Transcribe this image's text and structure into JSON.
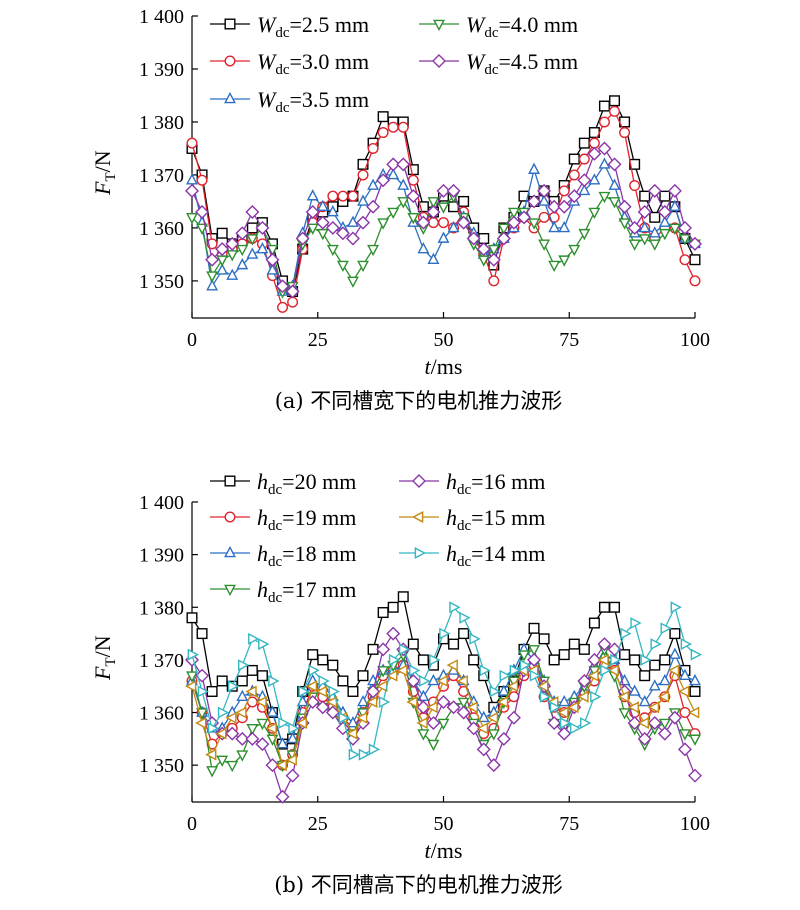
{
  "chart_data": [
    {
      "type": "line",
      "panel": "a",
      "caption": "(a) 不同槽宽下的电机推力波形",
      "xlabel": "t/ms",
      "ylabel": "F_T/N",
      "xlim": [
        0,
        100
      ],
      "ylim": [
        1343,
        1400
      ],
      "xticks": [
        0,
        25,
        50,
        75,
        100
      ],
      "xtick_labels": [
        "0",
        "25",
        "50",
        "75",
        "100"
      ],
      "yticks": [
        1350,
        1360,
        1370,
        1380,
        1390,
        1400
      ],
      "ytick_labels": [
        "1 350",
        "1 360",
        "1 370",
        "1 380",
        "1 390",
        "1 400"
      ],
      "grid": false,
      "legend_position": "top",
      "x": [
        0,
        2,
        4,
        6,
        8,
        10,
        12,
        14,
        16,
        18,
        20,
        22,
        24,
        26,
        28,
        30,
        32,
        34,
        36,
        38,
        40,
        42,
        44,
        46,
        48,
        50,
        52,
        54,
        56,
        58,
        60,
        62,
        64,
        66,
        68,
        70,
        72,
        74,
        76,
        78,
        80,
        82,
        84,
        86,
        88,
        90,
        92,
        94,
        96,
        98,
        100
      ],
      "series": [
        {
          "name_main": "W",
          "name_sub": "dc",
          "name_rest": "=2.5 mm",
          "color": "#000000",
          "marker": "square",
          "values": [
            1375,
            1370,
            1358,
            1359,
            1357,
            1358,
            1360,
            1361,
            1357,
            1350,
            1348,
            1356,
            1362,
            1363,
            1364,
            1365,
            1366,
            1372,
            1376,
            1381,
            1380,
            1380,
            1371,
            1364,
            1363,
            1366,
            1364,
            1365,
            1360,
            1358,
            1353,
            1360,
            1362,
            1366,
            1365,
            1367,
            1365,
            1368,
            1373,
            1376,
            1378,
            1383,
            1384,
            1380,
            1372,
            1366,
            1362,
            1366,
            1364,
            1358,
            1354
          ]
        },
        {
          "name_main": "W",
          "name_sub": "dc",
          "name_rest": "=3.0 mm",
          "color": "#e0242e",
          "marker": "circle",
          "values": [
            1376,
            1369,
            1357,
            1355,
            1356,
            1357,
            1358,
            1357,
            1351,
            1345,
            1346,
            1356,
            1361,
            1364,
            1366,
            1366,
            1366,
            1370,
            1375,
            1378,
            1379,
            1379,
            1369,
            1362,
            1361,
            1361,
            1360,
            1363,
            1358,
            1355,
            1350,
            1358,
            1360,
            1362,
            1360,
            1362,
            1362,
            1367,
            1370,
            1373,
            1376,
            1380,
            1382,
            1378,
            1368,
            1360,
            1358,
            1360,
            1360,
            1354,
            1350
          ]
        },
        {
          "name_main": "W",
          "name_sub": "dc",
          "name_rest": "=3.5 mm",
          "color": "#2c6fc4",
          "marker": "triangle-up",
          "values": [
            1369,
            1361,
            1349,
            1352,
            1351,
            1353,
            1355,
            1356,
            1352,
            1348,
            1349,
            1359,
            1366,
            1364,
            1363,
            1360,
            1361,
            1365,
            1368,
            1370,
            1370,
            1368,
            1361,
            1356,
            1354,
            1358,
            1360,
            1362,
            1359,
            1355,
            1356,
            1358,
            1360,
            1363,
            1371,
            1365,
            1360,
            1360,
            1365,
            1367,
            1369,
            1372,
            1368,
            1362,
            1359,
            1360,
            1359,
            1361,
            1364,
            1358,
            1357
          ]
        },
        {
          "name_main": "W",
          "name_sub": "dc",
          "name_rest": "=4.0 mm",
          "color": "#2d8f2d",
          "marker": "triangle-down",
          "values": [
            1362,
            1360,
            1351,
            1354,
            1355,
            1356,
            1358,
            1360,
            1356,
            1348,
            1349,
            1357,
            1360,
            1359,
            1356,
            1353,
            1350,
            1353,
            1356,
            1361,
            1363,
            1365,
            1362,
            1360,
            1365,
            1364,
            1366,
            1362,
            1357,
            1354,
            1356,
            1360,
            1363,
            1363,
            1361,
            1357,
            1353,
            1354,
            1356,
            1359,
            1363,
            1366,
            1365,
            1361,
            1357,
            1358,
            1357,
            1359,
            1360,
            1358,
            1357
          ]
        },
        {
          "name_main": "W",
          "name_sub": "dc",
          "name_rest": "=4.5 mm",
          "color": "#8b35a8",
          "marker": "diamond",
          "values": [
            1367,
            1363,
            1354,
            1356,
            1357,
            1359,
            1363,
            1360,
            1354,
            1349,
            1348,
            1358,
            1363,
            1361,
            1360,
            1359,
            1358,
            1361,
            1364,
            1369,
            1372,
            1372,
            1366,
            1361,
            1363,
            1367,
            1367,
            1361,
            1358,
            1356,
            1354,
            1358,
            1361,
            1362,
            1365,
            1367,
            1364,
            1364,
            1366,
            1369,
            1374,
            1375,
            1372,
            1364,
            1360,
            1363,
            1367,
            1363,
            1367,
            1360,
            1357
          ]
        }
      ]
    },
    {
      "type": "line",
      "panel": "b",
      "caption": "(b) 不同槽高下的电机推力波形",
      "xlabel": "t/ms",
      "ylabel": "F_T/N",
      "xlim": [
        0,
        100
      ],
      "ylim": [
        1343,
        1400
      ],
      "xticks": [
        0,
        25,
        50,
        75,
        100
      ],
      "xtick_labels": [
        "0",
        "25",
        "50",
        "75",
        "100"
      ],
      "yticks": [
        1350,
        1360,
        1370,
        1380,
        1390,
        1400
      ],
      "ytick_labels": [
        "1 350",
        "1 360",
        "1 370",
        "1 380",
        "1 390",
        "1 400"
      ],
      "grid": false,
      "legend_position": "top",
      "x": [
        0,
        2,
        4,
        6,
        8,
        10,
        12,
        14,
        16,
        18,
        20,
        22,
        24,
        26,
        28,
        30,
        32,
        34,
        36,
        38,
        40,
        42,
        44,
        46,
        48,
        50,
        52,
        54,
        56,
        58,
        60,
        62,
        64,
        66,
        68,
        70,
        72,
        74,
        76,
        78,
        80,
        82,
        84,
        86,
        88,
        90,
        92,
        94,
        96,
        98,
        100
      ],
      "series": [
        {
          "name_main": "h",
          "name_sub": "dc",
          "name_rest": "=20 mm",
          "color": "#000000",
          "marker": "square",
          "values": [
            1378,
            1375,
            1364,
            1366,
            1365,
            1366,
            1368,
            1367,
            1360,
            1354,
            1355,
            1364,
            1371,
            1370,
            1369,
            1366,
            1364,
            1367,
            1372,
            1379,
            1380,
            1382,
            1373,
            1370,
            1369,
            1374,
            1373,
            1375,
            1370,
            1367,
            1361,
            1364,
            1366,
            1372,
            1376,
            1374,
            1370,
            1371,
            1373,
            1372,
            1377,
            1380,
            1380,
            1371,
            1370,
            1367,
            1369,
            1370,
            1375,
            1368,
            1364
          ]
        },
        {
          "name_main": "h",
          "name_sub": "dc",
          "name_rest": "=19 mm",
          "color": "#e0242e",
          "marker": "circle",
          "values": [
            1366,
            1360,
            1354,
            1356,
            1357,
            1359,
            1362,
            1361,
            1357,
            1350,
            1352,
            1360,
            1365,
            1363,
            1361,
            1359,
            1357,
            1360,
            1363,
            1367,
            1368,
            1369,
            1364,
            1359,
            1362,
            1365,
            1367,
            1364,
            1359,
            1356,
            1357,
            1361,
            1363,
            1367,
            1369,
            1363,
            1361,
            1360,
            1362,
            1364,
            1366,
            1369,
            1368,
            1363,
            1360,
            1359,
            1361,
            1363,
            1367,
            1360,
            1356
          ]
        },
        {
          "name_main": "h",
          "name_sub": "dc",
          "name_rest": "=18 mm",
          "color": "#2c6fc4",
          "marker": "triangle-up",
          "values": [
            1366,
            1360,
            1357,
            1357,
            1360,
            1363,
            1364,
            1363,
            1360,
            1354,
            1355,
            1362,
            1366,
            1365,
            1363,
            1360,
            1358,
            1362,
            1366,
            1368,
            1368,
            1369,
            1366,
            1363,
            1366,
            1367,
            1368,
            1366,
            1362,
            1359,
            1360,
            1364,
            1368,
            1372,
            1370,
            1366,
            1362,
            1362,
            1363,
            1365,
            1369,
            1371,
            1370,
            1366,
            1364,
            1362,
            1365,
            1366,
            1371,
            1367,
            1366
          ]
        },
        {
          "name_main": "h",
          "name_sub": "dc",
          "name_rest": "=17 mm",
          "color": "#2d8f2d",
          "marker": "triangle-down",
          "values": [
            1367,
            1360,
            1349,
            1351,
            1350,
            1352,
            1357,
            1358,
            1355,
            1350,
            1352,
            1359,
            1363,
            1361,
            1360,
            1358,
            1356,
            1360,
            1364,
            1368,
            1369,
            1371,
            1362,
            1356,
            1354,
            1358,
            1361,
            1362,
            1358,
            1354,
            1356,
            1362,
            1366,
            1371,
            1372,
            1366,
            1358,
            1357,
            1362,
            1365,
            1368,
            1372,
            1367,
            1360,
            1357,
            1354,
            1357,
            1358,
            1360,
            1356,
            1355
          ]
        },
        {
          "name_main": "h",
          "name_sub": "dc",
          "name_rest": "=16 mm",
          "color": "#8b35a8",
          "marker": "diamond",
          "values": [
            1370,
            1367,
            1358,
            1356,
            1356,
            1355,
            1355,
            1354,
            1350,
            1344,
            1348,
            1358,
            1362,
            1361,
            1360,
            1357,
            1355,
            1358,
            1364,
            1372,
            1375,
            1372,
            1366,
            1361,
            1358,
            1362,
            1361,
            1360,
            1357,
            1353,
            1350,
            1355,
            1359,
            1368,
            1370,
            1365,
            1358,
            1356,
            1361,
            1366,
            1370,
            1373,
            1372,
            1364,
            1358,
            1355,
            1358,
            1356,
            1359,
            1353,
            1348
          ]
        },
        {
          "name_main": "h",
          "name_sub": "dc",
          "name_rest": "=15 mm",
          "color": "#c48a12",
          "marker": "triangle-left",
          "values": [
            1365,
            1358,
            1352,
            1356,
            1359,
            1360,
            1364,
            1362,
            1357,
            1350,
            1351,
            1358,
            1365,
            1364,
            1362,
            1359,
            1356,
            1359,
            1362,
            1365,
            1367,
            1368,
            1362,
            1358,
            1361,
            1366,
            1369,
            1366,
            1361,
            1357,
            1359,
            1362,
            1365,
            1368,
            1368,
            1365,
            1362,
            1360,
            1361,
            1363,
            1367,
            1370,
            1368,
            1363,
            1361,
            1358,
            1361,
            1363,
            1368,
            1364,
            1360
          ]
        },
        {
          "name_main": "h",
          "name_sub": "dc",
          "name_rest": "=14 mm",
          "color": "#35b7c2",
          "marker": "triangle-right",
          "values": [
            1371,
            1364,
            1357,
            1360,
            1365,
            1369,
            1374,
            1373,
            1366,
            1358,
            1357,
            1364,
            1368,
            1366,
            1364,
            1359,
            1352,
            1352,
            1353,
            1362,
            1370,
            1372,
            1368,
            1366,
            1370,
            1375,
            1380,
            1378,
            1374,
            1368,
            1364,
            1367,
            1368,
            1369,
            1367,
            1363,
            1361,
            1358,
            1357,
            1358,
            1363,
            1368,
            1370,
            1375,
            1377,
            1370,
            1373,
            1376,
            1380,
            1373,
            1371
          ]
        }
      ]
    }
  ]
}
